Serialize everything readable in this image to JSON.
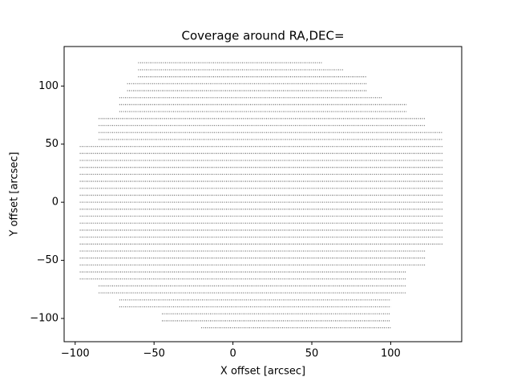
{
  "chart_data": {
    "type": "scan-rows",
    "title": "Coverage around RA,DEC=",
    "xlabel": "X offset [arcsec]",
    "ylabel": "Y offset [arcsec]",
    "color": "#555555",
    "y": [
      120,
      114,
      108,
      102,
      96,
      90,
      84,
      78,
      72,
      66,
      60,
      54,
      48,
      42,
      36,
      30,
      24,
      18,
      12,
      6,
      0,
      -6,
      -12,
      -18,
      -24,
      -30,
      -36,
      -42,
      -48,
      -54,
      -60,
      -66,
      -72,
      -78,
      -84,
      -90,
      -96,
      -102,
      -108
    ],
    "x_start": [
      -60,
      -60,
      -60,
      -67,
      -67,
      -72,
      -72,
      -72,
      -85,
      -85,
      -85,
      -85,
      -97,
      -97,
      -97,
      -97,
      -97,
      -97,
      -97,
      -97,
      -97,
      -97,
      -97,
      -97,
      -97,
      -97,
      -97,
      -97,
      -97,
      -97,
      -97,
      -97,
      -85,
      -85,
      -72,
      -72,
      -45,
      -45,
      -20
    ],
    "x_end": [
      57,
      70,
      85,
      85,
      85,
      95,
      110,
      110,
      122,
      122,
      133,
      133,
      133,
      133,
      133,
      133,
      133,
      133,
      133,
      133,
      133,
      133,
      133,
      133,
      133,
      133,
      133,
      122,
      122,
      122,
      110,
      110,
      110,
      110,
      100,
      100,
      100,
      100,
      100
    ],
    "xlim": [
      -107,
      145
    ],
    "ylim": [
      -120,
      134
    ],
    "xticks": [
      {
        "value": -100,
        "label": "−100"
      },
      {
        "value": -50,
        "label": "−50"
      },
      0,
      50,
      100
    ],
    "yticks": [
      {
        "value": -100,
        "label": "−100"
      },
      {
        "value": -50,
        "label": "−50"
      },
      0,
      50,
      100
    ]
  }
}
